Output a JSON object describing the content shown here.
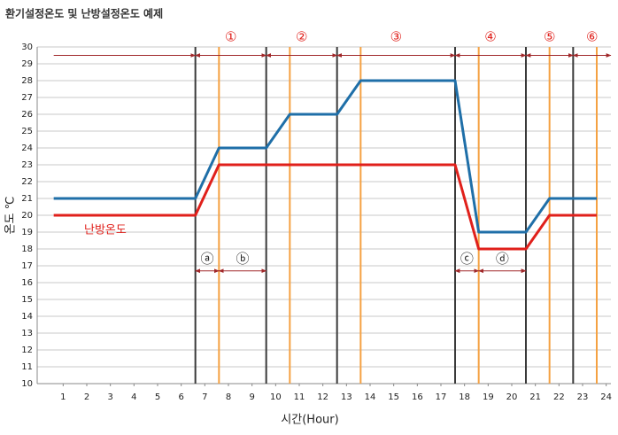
{
  "chart_data": {
    "type": "line",
    "title": "환기설정온도 및 난방설정온도 예제",
    "x_label": "시간(Hour)",
    "y_label": "온도 ℃",
    "x": [
      0.6,
      6.6,
      7.6,
      9.6,
      10.6,
      12.6,
      13.6,
      17.6,
      18.6,
      20.6,
      21.6,
      23.6
    ],
    "series": [
      {
        "color": "#1f6fa8",
        "values": [
          21,
          21,
          24,
          24,
          26,
          26,
          28,
          28,
          19,
          19,
          21,
          21
        ]
      },
      {
        "name": "난방온도",
        "color": "#e0201b",
        "values": [
          20,
          20,
          23,
          23,
          23,
          23,
          23,
          23,
          18,
          18,
          20,
          20
        ]
      }
    ],
    "xlim": [
      -0.1,
      24.2
    ],
    "xticks": [
      1,
      2,
      3,
      4,
      5,
      6,
      7,
      8,
      9,
      10,
      11,
      12,
      13,
      14,
      15,
      16,
      17,
      18,
      19,
      20,
      21,
      22,
      23,
      24
    ],
    "ylim": [
      10,
      30
    ],
    "yticks": [
      10,
      11,
      12,
      13,
      14,
      15,
      16,
      17,
      18,
      19,
      20,
      21,
      22,
      23,
      24,
      25,
      26,
      27,
      28,
      29,
      30
    ],
    "grid": true,
    "phase_boundaries": [
      6.6,
      9.6,
      12.6,
      17.6,
      20.6,
      22.6
    ],
    "boundary_color": "#3a3a3a",
    "orange_lines": [
      7.6,
      10.6,
      13.6,
      18.6,
      21.6,
      23.6
    ],
    "orange_color": "#f5a142",
    "phase_labels": [
      "①",
      "②",
      "③",
      "④",
      "⑤",
      "⑥"
    ],
    "sub_labels": [
      "ⓐ",
      "ⓑ",
      "ⓒ",
      "ⓓ"
    ],
    "arrow_color": "#a0282a"
  }
}
